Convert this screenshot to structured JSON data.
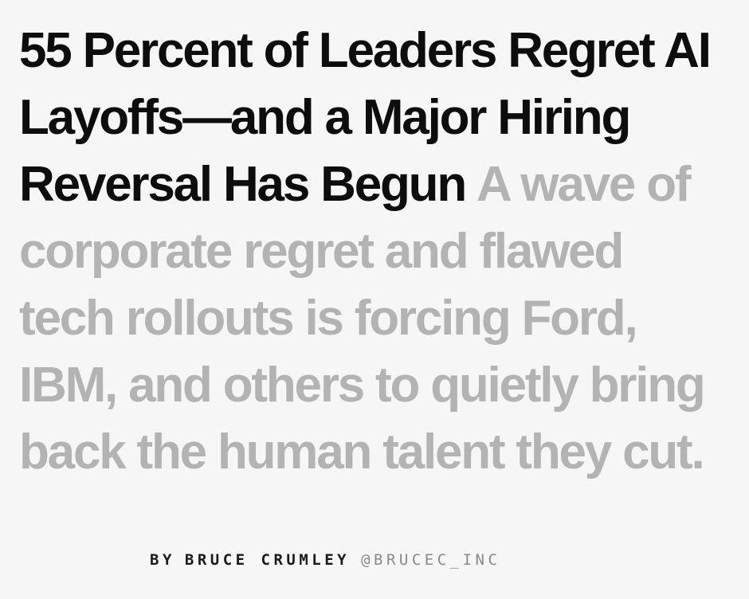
{
  "headline": {
    "title": "55 Percent of Leaders Regret AI Layoffs—and a Major Hiring Reversal Has Begun",
    "dek": "A wave of corporate regret and flawed tech rollouts is forcing Ford, IBM, and others to quietly bring back the human talent they cut."
  },
  "byline": {
    "prefix": "BY",
    "author": "BRUCE CRUMLEY",
    "handle": "@BRUCEC_INC"
  }
}
